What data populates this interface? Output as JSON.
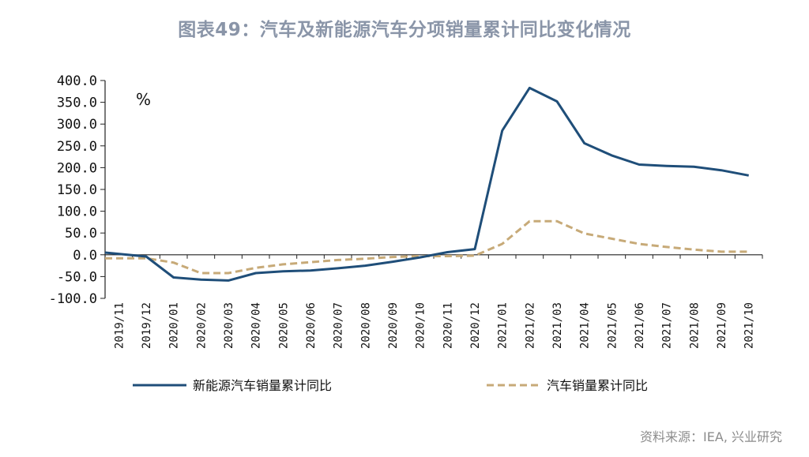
{
  "chart_data": {
    "type": "line",
    "title": "图表49：汽车及新能源汽车分项销量累计同比变化情况",
    "unit_label": "%",
    "ylim": [
      -100,
      400
    ],
    "yticks": [
      "400.0",
      "350.0",
      "300.0",
      "250.0",
      "200.0",
      "150.0",
      "100.0",
      "50.0",
      "0.0",
      "-50.0",
      "-100.0"
    ],
    "categories": [
      "2019/11",
      "2019/12",
      "2020/01",
      "2020/02",
      "2020/03",
      "2020/04",
      "2020/05",
      "2020/06",
      "2020/07",
      "2020/08",
      "2020/09",
      "2020/10",
      "2020/11",
      "2020/12",
      "2021/01",
      "2021/02",
      "2021/03",
      "2021/04",
      "2021/05",
      "2021/06",
      "2021/07",
      "2021/08",
      "2021/09",
      "2021/10"
    ],
    "series": [
      {
        "name": "新能源汽车销量累计同比",
        "color": "#1f4e79",
        "style": "solid",
        "values": [
          5,
          -4,
          -52,
          -57,
          -59,
          -42,
          -38,
          -36,
          -31,
          -25,
          -16,
          -6,
          6,
          13,
          285,
          383,
          352,
          256,
          228,
          207,
          204,
          202,
          194,
          182
        ]
      },
      {
        "name": "汽车销量累计同比",
        "color": "#c7aa78",
        "style": "dashed",
        "values": [
          -8,
          -8,
          -18,
          -42,
          -42,
          -30,
          -22,
          -17,
          -12,
          -9,
          -5,
          -3,
          -3,
          -2,
          25,
          77,
          77,
          49,
          37,
          25,
          18,
          12,
          7,
          7
        ]
      }
    ],
    "grid": false,
    "legend_position": "bottom"
  },
  "source": "资料来源：IEA, 兴业研究"
}
